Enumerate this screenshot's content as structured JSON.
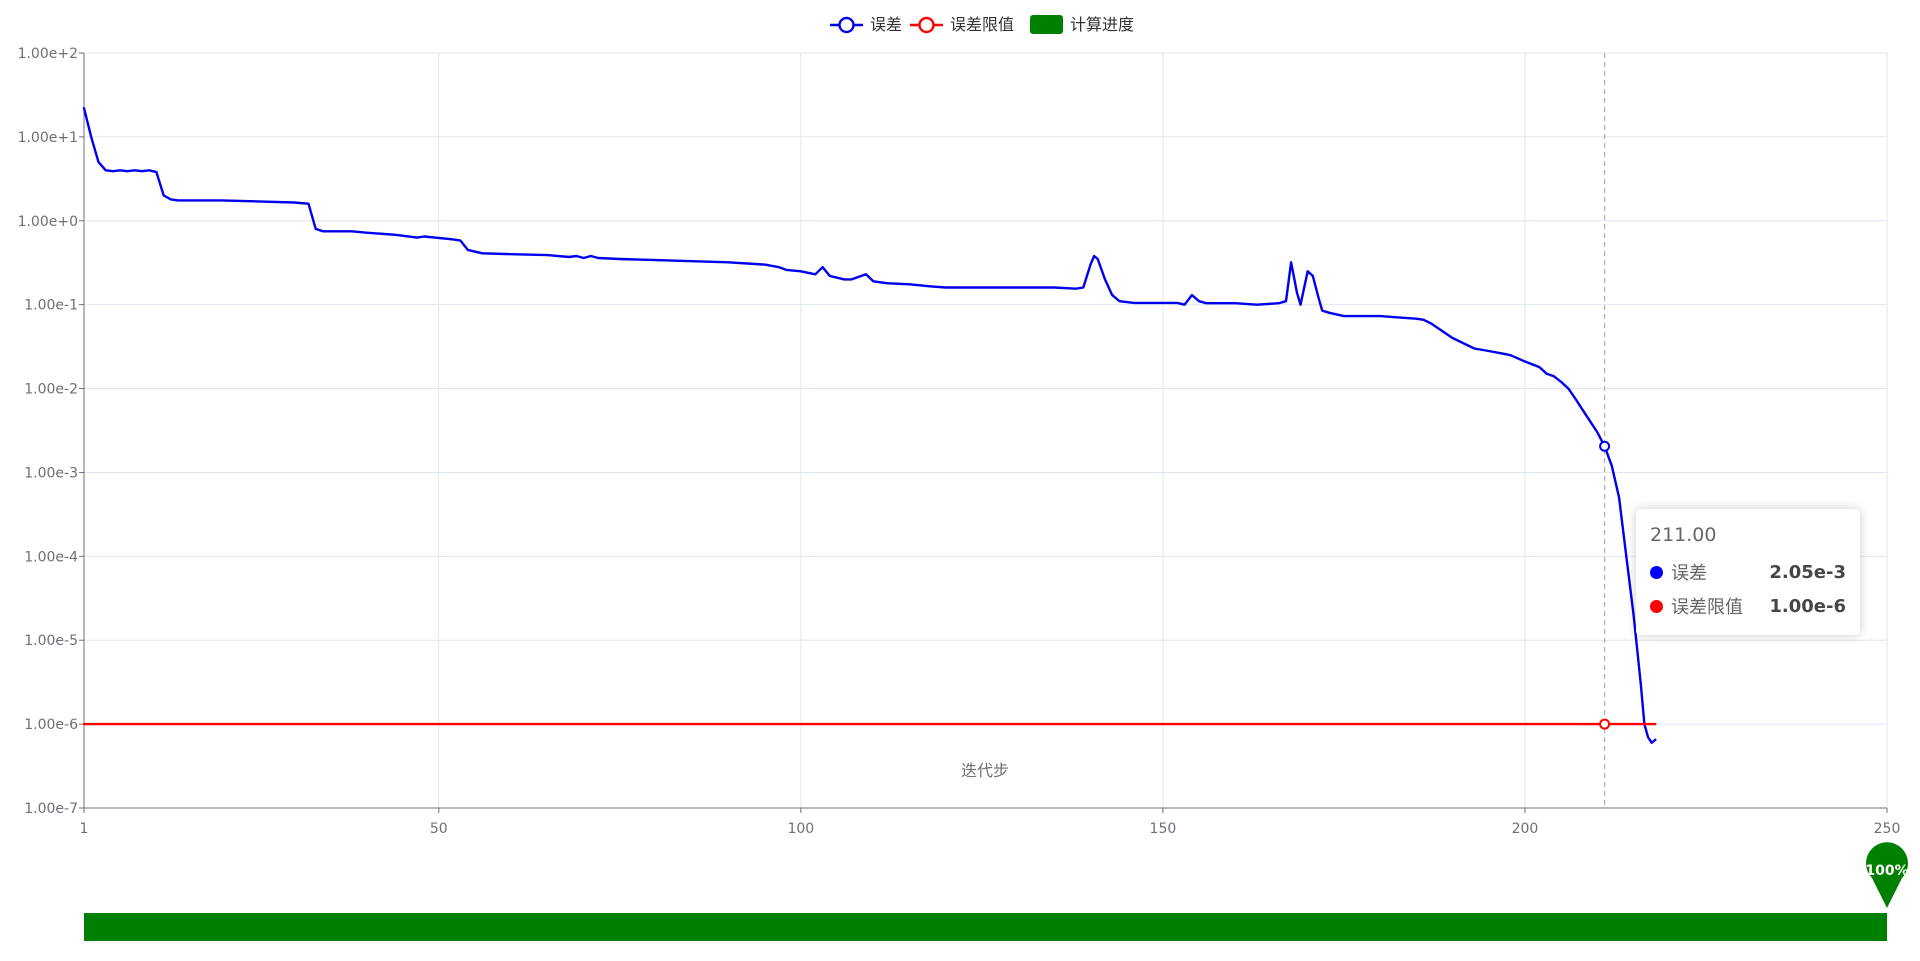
{
  "chart_data": {
    "type": "line",
    "legend": [
      {
        "name": "误差",
        "icon": "circle-line",
        "color": "#0000ee"
      },
      {
        "name": "误差限值",
        "icon": "circle-line",
        "color": "#ff0000"
      },
      {
        "name": "计算进度",
        "icon": "rect",
        "color": "#008000"
      }
    ],
    "legend_position": "top-center",
    "xlabel": "迭代步",
    "xlim": [
      1,
      250
    ],
    "x_ticks": [
      {
        "value": 1,
        "label": "1"
      },
      {
        "value": 50,
        "label": "50"
      },
      {
        "value": 100,
        "label": "100"
      },
      {
        "value": 150,
        "label": "150"
      },
      {
        "value": 200,
        "label": "200"
      },
      {
        "value": 250,
        "label": "250"
      }
    ],
    "y_scale": "log",
    "ylim": [
      1e-07,
      100
    ],
    "y_ticks": [
      {
        "value": 100,
        "label": "1.00e+2"
      },
      {
        "value": 10,
        "label": "1.00e+1"
      },
      {
        "value": 1,
        "label": "1.00e+0"
      },
      {
        "value": 0.1,
        "label": "1.00e-1"
      },
      {
        "value": 0.01,
        "label": "1.00e-2"
      },
      {
        "value": 0.001,
        "label": "1.00e-3"
      },
      {
        "value": 0.0001,
        "label": "1.00e-4"
      },
      {
        "value": 1e-05,
        "label": "1.00e-5"
      },
      {
        "value": 1e-06,
        "label": "1.00e-6"
      },
      {
        "value": 1e-07,
        "label": "1.00e-7"
      }
    ],
    "grid": true,
    "series": [
      {
        "name": "误差",
        "color": "#0000ee",
        "x": [
          1,
          2,
          3,
          4,
          5,
          6,
          7,
          8,
          9,
          10,
          11,
          12,
          13,
          14,
          20,
          25,
          30,
          32,
          33,
          34,
          38,
          40,
          44,
          47,
          48,
          52,
          53,
          54,
          56,
          60,
          65,
          68,
          69,
          70,
          71,
          72,
          75,
          80,
          85,
          90,
          95,
          97,
          98,
          100,
          101,
          102,
          103,
          104,
          106,
          107,
          109,
          110,
          112,
          115,
          118,
          120,
          125,
          130,
          135,
          138,
          139,
          140,
          140.5,
          141,
          142,
          143,
          144,
          146,
          150,
          152,
          153,
          154,
          155,
          156,
          160,
          163,
          166,
          167,
          167.7,
          168.5,
          169,
          170,
          170.7,
          171.5,
          172,
          173,
          175,
          180,
          183,
          185,
          186,
          187,
          190,
          193,
          195,
          197,
          198,
          200,
          202,
          203,
          204,
          205,
          206,
          207,
          208,
          210,
          211,
          212,
          213,
          214,
          215,
          216,
          216.5,
          217,
          217.5,
          218
        ],
        "values": [
          22,
          10,
          5,
          4,
          3.9,
          4,
          3.9,
          4,
          3.9,
          4,
          3.8,
          2,
          1.8,
          1.75,
          1.75,
          1.7,
          1.65,
          1.6,
          0.8,
          0.75,
          0.75,
          0.72,
          0.68,
          0.63,
          0.65,
          0.6,
          0.58,
          0.45,
          0.41,
          0.4,
          0.39,
          0.37,
          0.38,
          0.36,
          0.38,
          0.36,
          0.35,
          0.34,
          0.33,
          0.32,
          0.3,
          0.28,
          0.26,
          0.25,
          0.24,
          0.23,
          0.28,
          0.22,
          0.2,
          0.2,
          0.23,
          0.19,
          0.18,
          0.175,
          0.165,
          0.16,
          0.16,
          0.16,
          0.16,
          0.155,
          0.16,
          0.3,
          0.38,
          0.35,
          0.2,
          0.13,
          0.11,
          0.105,
          0.105,
          0.105,
          0.1,
          0.13,
          0.11,
          0.104,
          0.104,
          0.1,
          0.104,
          0.11,
          0.32,
          0.14,
          0.1,
          0.25,
          0.22,
          0.12,
          0.085,
          0.08,
          0.073,
          0.073,
          0.07,
          0.068,
          0.066,
          0.06,
          0.04,
          0.03,
          0.028,
          0.026,
          0.025,
          0.021,
          0.018,
          0.015,
          0.014,
          0.012,
          0.01,
          0.0075,
          0.0055,
          0.003,
          0.00205,
          0.0012,
          0.0005,
          0.0001,
          2e-05,
          3e-06,
          1e-06,
          7e-07,
          6e-07,
          6.5e-07
        ]
      },
      {
        "name": "误差限值",
        "color": "#ff0000",
        "x": [
          1,
          218
        ],
        "values": [
          1e-06,
          1e-06
        ]
      }
    ],
    "highlight_x": 211,
    "highlight_points": [
      {
        "series": "误差",
        "x": 211,
        "value": 0.00205
      },
      {
        "series": "误差限值",
        "x": 211,
        "value": 1e-06
      }
    ],
    "tooltip": {
      "title": "211.00",
      "rows": [
        {
          "name": "误差",
          "value": "2.05e-3",
          "color": "#0000ff"
        },
        {
          "name": "误差限值",
          "value": "1.00e-6",
          "color": "#ff0000"
        }
      ]
    },
    "progress": {
      "name": "计算进度",
      "fraction": 1.0,
      "label": "100%",
      "color": "#008000"
    }
  }
}
